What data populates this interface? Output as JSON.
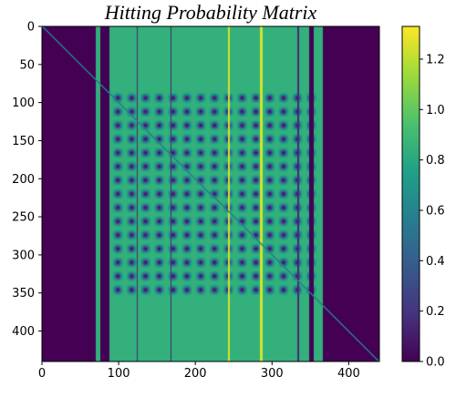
{
  "chart_data": {
    "type": "heatmap",
    "title": "Hitting Probability Matrix",
    "matrix_size": 440,
    "x_ticks": [
      0,
      100,
      200,
      300,
      400
    ],
    "y_ticks": [
      0,
      50,
      100,
      150,
      200,
      250,
      300,
      350,
      400
    ],
    "xlim": [
      0,
      440
    ],
    "ylim": [
      440,
      0
    ],
    "colormap": "viridis",
    "colorbar": {
      "vmin": 0.0,
      "vmax": 1.33,
      "ticks": [
        0.0,
        0.2,
        0.4,
        0.6,
        0.8,
        1.0,
        1.2
      ],
      "tick_labels": [
        "0.0",
        "0.2",
        "0.4",
        "0.6",
        "0.8",
        "1.0",
        "1.2"
      ]
    },
    "structure": {
      "background_value": 0.0,
      "band_value": 0.85,
      "band_columns": [
        [
          70,
          76
        ],
        [
          88,
          366
        ]
      ],
      "dark_column_gaps": [
        [
          76,
          88
        ],
        [
          348,
          354
        ]
      ],
      "bright_columns": [
        244,
        286
      ],
      "thin_dark_columns": [
        124,
        168,
        334
      ],
      "diagonal_value": 0.55,
      "lattice_rows": [
        85,
        355
      ],
      "lattice_cols": [
        90,
        360
      ],
      "lattice_period": 18,
      "lattice_min_value": 0.05
    }
  }
}
